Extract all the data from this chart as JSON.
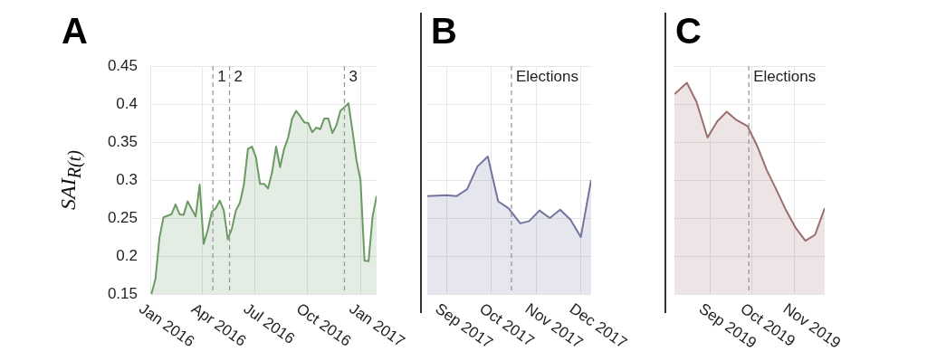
{
  "chart_data": [
    {
      "type": "area",
      "title": "A",
      "ylabel": "SAI$_{R(t)}$",
      "color": "#6b9a63",
      "x": [
        "2016-01-03",
        "2016-01-10",
        "2016-01-17",
        "2016-01-24",
        "2016-01-31",
        "2016-02-07",
        "2016-02-14",
        "2016-02-21",
        "2016-02-28",
        "2016-03-06",
        "2016-03-13",
        "2016-03-20",
        "2016-03-27",
        "2016-04-03",
        "2016-04-10",
        "2016-04-17",
        "2016-04-24",
        "2016-05-01",
        "2016-05-08",
        "2016-05-15",
        "2016-05-22",
        "2016-05-29",
        "2016-06-05",
        "2016-06-12",
        "2016-06-19",
        "2016-06-26",
        "2016-07-03",
        "2016-07-10",
        "2016-07-17",
        "2016-07-24",
        "2016-07-31",
        "2016-08-07",
        "2016-08-14",
        "2016-08-21",
        "2016-08-28",
        "2016-09-04",
        "2016-09-11",
        "2016-09-18",
        "2016-09-25",
        "2016-10-02",
        "2016-10-09",
        "2016-10-16",
        "2016-10-23",
        "2016-10-30",
        "2016-11-06",
        "2016-11-13",
        "2016-11-20",
        "2016-11-27",
        "2016-12-04",
        "2016-12-11",
        "2016-12-18",
        "2016-12-25",
        "2017-01-01",
        "2017-01-08",
        "2017-01-15",
        "2017-01-22",
        "2017-01-29"
      ],
      "values": [
        0.15,
        0.17,
        0.224,
        0.251,
        0.253,
        0.255,
        0.268,
        0.255,
        0.254,
        0.272,
        0.262,
        0.252,
        0.294,
        0.216,
        0.234,
        0.258,
        0.263,
        0.273,
        0.26,
        0.222,
        0.236,
        0.26,
        0.27,
        0.294,
        0.341,
        0.344,
        0.33,
        0.295,
        0.295,
        0.289,
        0.31,
        0.344,
        0.317,
        0.341,
        0.356,
        0.381,
        0.391,
        0.384,
        0.376,
        0.375,
        0.363,
        0.369,
        0.367,
        0.381,
        0.381,
        0.362,
        0.372,
        0.391,
        0.396,
        0.401,
        0.365,
        0.326,
        0.3,
        0.194,
        0.193,
        0.252,
        0.279
      ],
      "xlim": [
        "2016-01-01",
        "2017-01-29"
      ],
      "xticks": [
        {
          "value": "2016-01-01",
          "label": "Jan 2016"
        },
        {
          "value": "2016-04-01",
          "label": "Apr 2016"
        },
        {
          "value": "2016-07-01",
          "label": "Jul 2016"
        },
        {
          "value": "2016-10-01",
          "label": "Oct 2016"
        },
        {
          "value": "2017-01-01",
          "label": "Jan 2017"
        }
      ],
      "ylim": [
        0.15,
        0.45
      ],
      "yticks": [
        0.15,
        0.2,
        0.25,
        0.3,
        0.35,
        0.4,
        0.45
      ],
      "grid": true,
      "ref_lines": [
        {
          "axis": "x",
          "value": "2016-04-19",
          "label": "1",
          "line_style": "dashed",
          "color": "#999999"
        },
        {
          "axis": "x",
          "value": "2016-05-18",
          "label": "2",
          "line_style": "dashed",
          "color": "#999999"
        },
        {
          "axis": "x",
          "value": "2016-12-04",
          "label": "3",
          "line_style": "dashed",
          "color": "#999999"
        }
      ]
    },
    {
      "type": "area",
      "title": "B",
      "color": "#7474a0",
      "x": [
        "2017-08-19",
        "2017-09-01",
        "2017-09-08",
        "2017-09-15",
        "2017-09-22",
        "2017-09-29",
        "2017-10-06",
        "2017-10-13",
        "2017-10-21",
        "2017-10-27",
        "2017-11-03",
        "2017-11-10",
        "2017-11-17",
        "2017-11-24",
        "2017-12-01",
        "2017-12-08"
      ],
      "values": [
        0.279,
        0.28,
        0.279,
        0.288,
        0.318,
        0.331,
        0.272,
        0.263,
        0.243,
        0.246,
        0.26,
        0.25,
        0.261,
        0.248,
        0.225,
        0.3
      ],
      "xlim": [
        "2017-08-19",
        "2017-12-08"
      ],
      "xticks": [
        {
          "value": "2017-09-01",
          "label": "Sep 2017"
        },
        {
          "value": "2017-10-01",
          "label": "Oct 2017"
        },
        {
          "value": "2017-11-01",
          "label": "Nov 2017"
        },
        {
          "value": "2017-12-01",
          "label": "Dec 2017"
        }
      ],
      "ylim": [
        0.15,
        0.45
      ],
      "yticks": [
        0.15,
        0.2,
        0.25,
        0.3,
        0.35,
        0.4,
        0.45
      ],
      "grid": true,
      "tick_labels": "x",
      "ref_lines": [
        {
          "axis": "x",
          "value": "2017-10-15",
          "label": "Elections",
          "line_style": "dashed",
          "color": "#999999"
        }
      ]
    },
    {
      "type": "area",
      "title": "C",
      "color": "#9a6e6e",
      "x": [
        "2019-08-06",
        "2019-08-15",
        "2019-08-22",
        "2019-08-30",
        "2019-09-06",
        "2019-09-13",
        "2019-09-20",
        "2019-09-28",
        "2019-10-05",
        "2019-10-12",
        "2019-10-19",
        "2019-10-26",
        "2019-11-02",
        "2019-11-09",
        "2019-11-16",
        "2019-11-23"
      ],
      "values": [
        0.413,
        0.428,
        0.403,
        0.356,
        0.377,
        0.39,
        0.379,
        0.371,
        0.345,
        0.313,
        0.287,
        0.26,
        0.237,
        0.22,
        0.228,
        0.263
      ],
      "xlim": [
        "2019-08-06",
        "2019-11-23"
      ],
      "xticks": [
        {
          "value": "2019-09-01",
          "label": "Sep 2019"
        },
        {
          "value": "2019-10-01",
          "label": "Oct 2019"
        },
        {
          "value": "2019-11-01",
          "label": "Nov 2019"
        }
      ],
      "ylim": [
        0.15,
        0.45
      ],
      "yticks": [
        0.15,
        0.2,
        0.25,
        0.3,
        0.35,
        0.4,
        0.45
      ],
      "grid": true,
      "tick_labels": "x",
      "ref_lines": [
        {
          "axis": "x",
          "value": "2019-09-29",
          "label": "Elections",
          "line_style": "dashed",
          "color": "#999999"
        }
      ]
    }
  ]
}
